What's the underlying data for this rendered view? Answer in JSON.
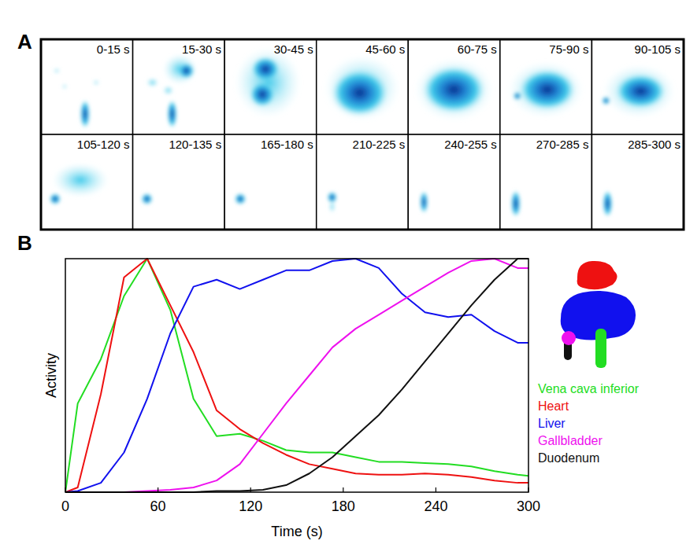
{
  "figure": {
    "panel_a": {
      "label": "A",
      "frames": [
        "0-15 s",
        "15-30 s",
        "30-45 s",
        "45-60 s",
        "60-75 s",
        "75-90 s",
        "90-105 s",
        "105-120 s",
        "120-135 s",
        "165-180 s",
        "210-225 s",
        "240-255 s",
        "270-285 s",
        "285-300 s"
      ]
    },
    "panel_b_label": "B"
  },
  "chart_data": {
    "type": "line",
    "x_label": "Time (s)",
    "y_label": "Activity",
    "x": [
      0,
      8,
      23,
      38,
      53,
      68,
      83,
      98,
      113,
      128,
      143,
      158,
      173,
      188,
      203,
      218,
      233,
      248,
      263,
      278,
      293,
      300
    ],
    "series": [
      {
        "name": "Vena cava inferior",
        "color": "#22dd22",
        "values": [
          0,
          0.38,
          0.57,
          0.84,
          1.0,
          0.78,
          0.4,
          0.24,
          0.25,
          0.22,
          0.18,
          0.17,
          0.17,
          0.15,
          0.13,
          0.13,
          0.125,
          0.12,
          0.11,
          0.09,
          0.075,
          0.07
        ]
      },
      {
        "name": "Heart",
        "color": "#ee1111",
        "values": [
          0,
          0.02,
          0.42,
          0.92,
          1.0,
          0.8,
          0.6,
          0.35,
          0.27,
          0.21,
          0.16,
          0.12,
          0.1,
          0.08,
          0.075,
          0.075,
          0.08,
          0.075,
          0.065,
          0.05,
          0.04,
          0.04
        ]
      },
      {
        "name": "Liver",
        "color": "#1111ee",
        "values": [
          0,
          0.005,
          0.04,
          0.17,
          0.4,
          0.68,
          0.88,
          0.91,
          0.87,
          0.91,
          0.95,
          0.95,
          0.99,
          1.0,
          0.96,
          0.85,
          0.77,
          0.75,
          0.76,
          0.69,
          0.64,
          0.64
        ]
      },
      {
        "name": "Gallbladder",
        "color": "#ee11ee",
        "values": [
          0,
          0,
          0,
          0,
          0.005,
          0.01,
          0.02,
          0.05,
          0.12,
          0.25,
          0.38,
          0.5,
          0.62,
          0.7,
          0.76,
          0.82,
          0.88,
          0.94,
          0.99,
          1.0,
          0.96,
          0.96
        ]
      },
      {
        "name": "Duodenum",
        "color": "#111111",
        "values": [
          0,
          0,
          0,
          0,
          0,
          0,
          0,
          0.005,
          0.005,
          0.01,
          0.03,
          0.08,
          0.15,
          0.24,
          0.33,
          0.44,
          0.56,
          0.68,
          0.8,
          0.91,
          1.0,
          1.0
        ]
      }
    ],
    "xlim": [
      0,
      300
    ],
    "xticks": [
      0,
      60,
      120,
      180,
      240,
      300
    ],
    "ylim": [
      0,
      1
    ],
    "yticks": [],
    "tick_labels": "x",
    "legend": "right",
    "grid": false
  }
}
